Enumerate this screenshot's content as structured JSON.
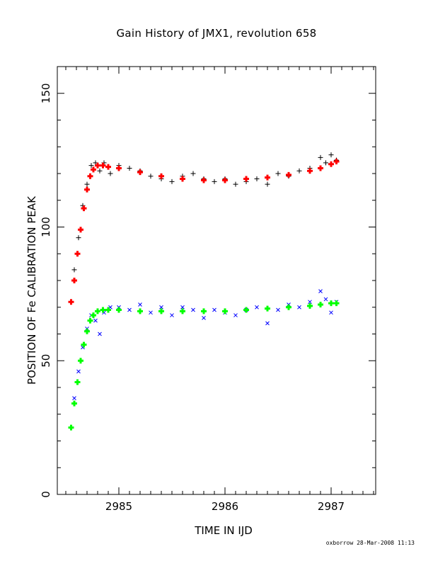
{
  "chart_data": {
    "type": "scatter",
    "title": "Gain History of JMX1, revolution 658",
    "xlabel": "TIME IN IJD",
    "ylabel": "POSITION OF Fe CALIBRATION PEAK",
    "footer": "oxborrow 28-Mar-2008 11:13",
    "xlim": [
      2984.42,
      2987.42
    ],
    "ylim": [
      0,
      160
    ],
    "x_ticks": [
      2985,
      2986,
      2987
    ],
    "y_ticks": [
      0,
      50,
      100,
      150
    ],
    "grid": false,
    "legend": "none",
    "series": [
      {
        "marker": "+",
        "color": "#000000",
        "x": [
          2984.58,
          2984.62,
          2984.66,
          2984.7,
          2984.74,
          2984.78,
          2984.82,
          2984.86,
          2984.92,
          2985.0,
          2985.1,
          2985.2,
          2985.3,
          2985.4,
          2985.5,
          2985.6,
          2985.7,
          2985.8,
          2985.9,
          2986.0,
          2986.1,
          2986.2,
          2986.3,
          2986.4,
          2986.5,
          2986.6,
          2986.7,
          2986.8,
          2986.9,
          2986.95,
          2987.0,
          2987.05
        ],
        "y": [
          84,
          96,
          108,
          116,
          123,
          124,
          121,
          124,
          120,
          123,
          122,
          121,
          119,
          118,
          117,
          119,
          120,
          118,
          117,
          118,
          116,
          117,
          118,
          116,
          120,
          119,
          121,
          122,
          126,
          124,
          127,
          125
        ]
      },
      {
        "marker": "+",
        "color": "#ff0000",
        "x": [
          2984.55,
          2984.58,
          2984.61,
          2984.64,
          2984.67,
          2984.7,
          2984.73,
          2984.76,
          2984.8,
          2984.85,
          2984.9,
          2985.0,
          2985.2,
          2985.4,
          2985.6,
          2985.8,
          2986.0,
          2986.2,
          2986.4,
          2986.6,
          2986.8,
          2986.9,
          2987.0,
          2987.05
        ],
        "y": [
          72,
          80,
          90,
          99,
          107,
          114,
          119,
          121.5,
          123,
          123,
          122.5,
          122,
          120.5,
          119,
          118,
          117.5,
          117.5,
          118,
          118.5,
          119.5,
          121,
          122,
          123.5,
          124.5
        ]
      },
      {
        "marker": "x",
        "color": "#0000ff",
        "x": [
          2984.58,
          2984.62,
          2984.66,
          2984.7,
          2984.74,
          2984.78,
          2984.82,
          2984.86,
          2984.92,
          2985.0,
          2985.1,
          2985.2,
          2985.3,
          2985.4,
          2985.5,
          2985.6,
          2985.7,
          2985.8,
          2985.9,
          2986.0,
          2986.1,
          2986.2,
          2986.3,
          2986.4,
          2986.5,
          2986.6,
          2986.7,
          2986.8,
          2986.9,
          2986.95,
          2987.0,
          2987.05
        ],
        "y": [
          36,
          46,
          55,
          62,
          67,
          65,
          60,
          68,
          70,
          70,
          69,
          71,
          68,
          70,
          67,
          70,
          69,
          66,
          69,
          68,
          67,
          69,
          70,
          64,
          69,
          71,
          70,
          72,
          76,
          73,
          68,
          72
        ]
      },
      {
        "marker": "+",
        "color": "#00ff00",
        "x": [
          2984.55,
          2984.58,
          2984.61,
          2984.64,
          2984.67,
          2984.7,
          2984.73,
          2984.76,
          2984.8,
          2984.85,
          2984.9,
          2985.0,
          2985.2,
          2985.4,
          2985.6,
          2985.8,
          2986.0,
          2986.2,
          2986.4,
          2986.6,
          2986.8,
          2986.9,
          2987.0,
          2987.05
        ],
        "y": [
          25,
          34,
          42,
          50,
          56,
          61,
          65,
          67,
          68.5,
          69,
          69,
          69,
          68.5,
          68.5,
          68.5,
          68.5,
          68.5,
          69,
          69.5,
          70,
          70.5,
          71,
          71.5,
          71.5
        ]
      }
    ]
  }
}
